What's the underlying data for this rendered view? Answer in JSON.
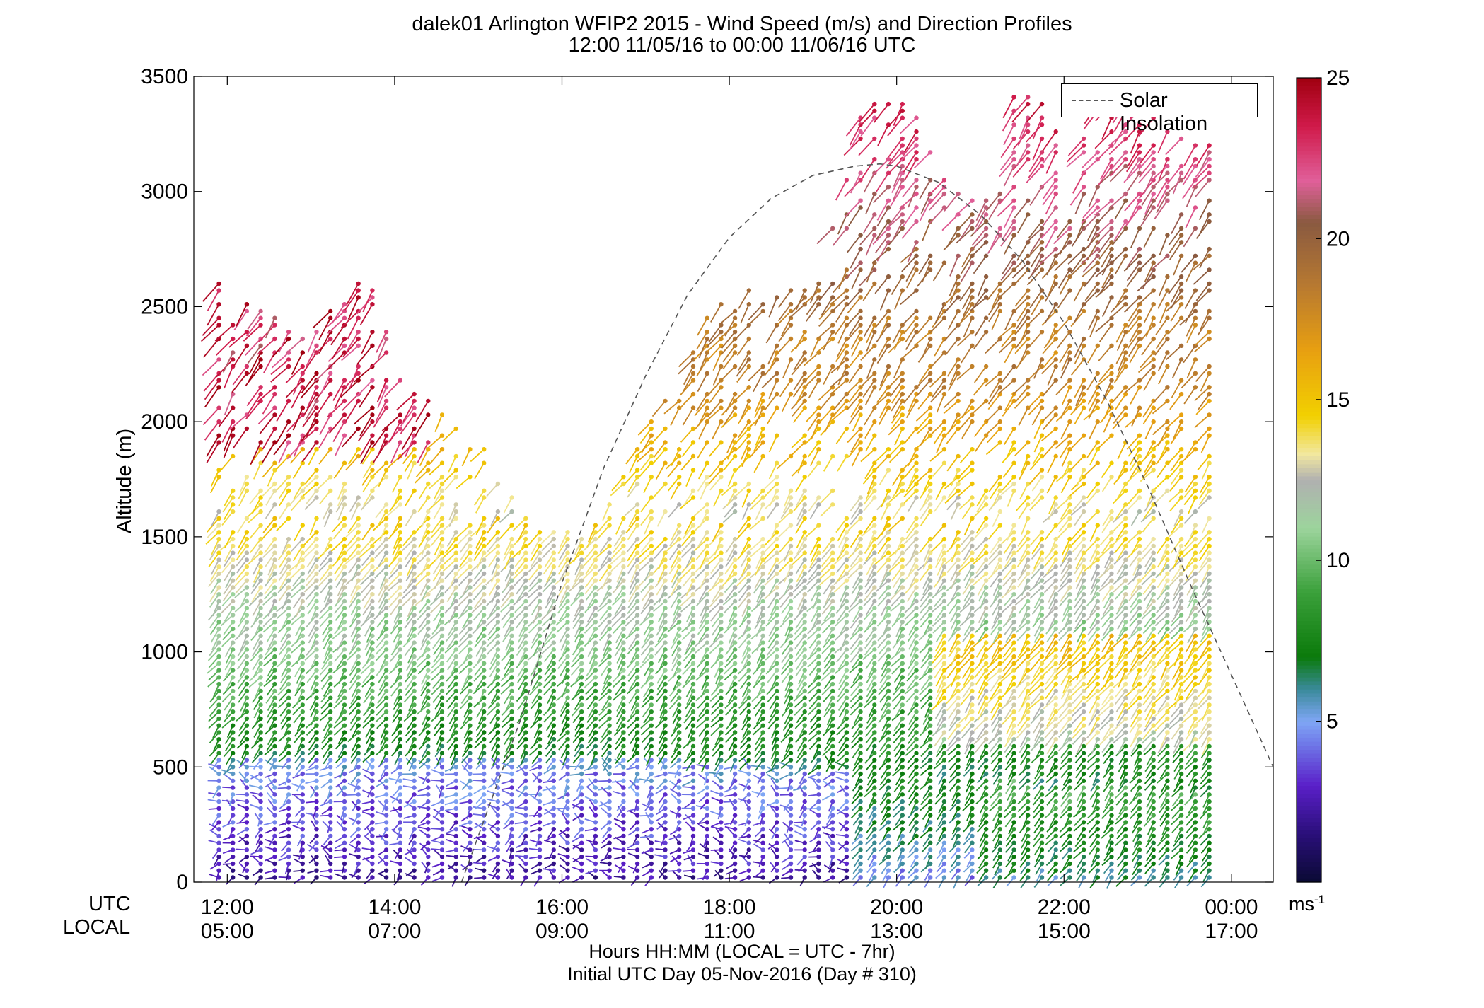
{
  "title_line1": "dalek01 Arlington WFIP2 2015 - Wind Speed (m/s) and Direction Profiles",
  "title_line2": "12:00 11/05/16 to 00:00 11/06/16  UTC",
  "chart_data": {
    "type": "wind-barb profile (time-height)",
    "ylabel": "Altitude (m)",
    "xlabel": "Hours HH:MM  (LOCAL = UTC - 7hr)",
    "footnote": "Initial UTC Day 05-Nov-2016 (Day # 310)",
    "ylim": [
      0,
      3500
    ],
    "yticks": [
      0,
      500,
      1000,
      1500,
      2000,
      2500,
      3000,
      3500
    ],
    "xlim_hours": [
      11.6,
      24.5
    ],
    "xticks_hours": [
      12,
      14,
      16,
      18,
      20,
      22,
      24
    ],
    "x_row_labels": {
      "utc": "UTC",
      "local": "LOCAL"
    },
    "xticks_utc": [
      "12:00",
      "14:00",
      "16:00",
      "18:00",
      "20:00",
      "22:00",
      "00:00"
    ],
    "xticks_local": [
      "05:00",
      "07:00",
      "09:00",
      "11:00",
      "13:00",
      "15:00",
      "17:00"
    ],
    "legend": [
      {
        "label": "Solar Insolation",
        "style": "dashed",
        "color": "#555555"
      }
    ],
    "solar_insolation": {
      "hours": [
        14.8,
        15.5,
        16.0,
        16.5,
        17.0,
        17.5,
        18.0,
        18.5,
        19.0,
        19.5,
        19.8,
        20.0,
        20.5,
        21.0,
        21.5,
        22.0,
        22.5,
        23.0,
        23.5,
        24.0,
        24.5
      ],
      "altitude": [
        0,
        700,
        1300,
        1800,
        2200,
        2550,
        2800,
        2970,
        3070,
        3110,
        3120,
        3110,
        3040,
        2900,
        2700,
        2430,
        2100,
        1720,
        1300,
        900,
        500
      ]
    },
    "colorbar": {
      "ticks": [
        5,
        10,
        15,
        20,
        25
      ],
      "range": [
        0,
        25
      ],
      "unit_label": "ms",
      "unit_exponent": "-1",
      "stops": [
        {
          "v": 0,
          "color": "#0a0a33"
        },
        {
          "v": 1.5,
          "color": "#2a0f7a"
        },
        {
          "v": 3.0,
          "color": "#5a1fc8"
        },
        {
          "v": 4.3,
          "color": "#6f78e8"
        },
        {
          "v": 5.0,
          "color": "#7fa6f5"
        },
        {
          "v": 6.0,
          "color": "#3a8a9a"
        },
        {
          "v": 7.0,
          "color": "#0a7a0a"
        },
        {
          "v": 9.0,
          "color": "#3aa03a"
        },
        {
          "v": 11.0,
          "color": "#9cd49c"
        },
        {
          "v": 12.5,
          "color": "#b0b0b0"
        },
        {
          "v": 13.3,
          "color": "#f2e8a0"
        },
        {
          "v": 14.5,
          "color": "#f2d000"
        },
        {
          "v": 16.5,
          "color": "#e8a010"
        },
        {
          "v": 18.5,
          "color": "#b87a30"
        },
        {
          "v": 20.5,
          "color": "#8a5a40"
        },
        {
          "v": 21.8,
          "color": "#e0609a"
        },
        {
          "v": 23.5,
          "color": "#d01a4a"
        },
        {
          "v": 25,
          "color": "#a00010"
        }
      ]
    },
    "wind_profile": {
      "time_start_hour": 11.9,
      "time_end_hour": 23.9,
      "time_step_hours": 0.1667,
      "alt_step_m": 30,
      "regimes": [
        {
          "alt_max": 550,
          "speed": "2-5 m/s",
          "direction": "variable, mostly from SW"
        },
        {
          "alt_max": 1100,
          "speed": "7-11 m/s",
          "direction": "from SW"
        },
        {
          "alt_max": 1600,
          "speed": "10-15 m/s",
          "direction": "from SW"
        },
        {
          "alt_max": 2600,
          "speed": "15-25 m/s",
          "direction": "from SW"
        },
        {
          "alt_max": 3500,
          "speed": "18-25 m/s",
          "direction": "from SW"
        }
      ]
    }
  }
}
